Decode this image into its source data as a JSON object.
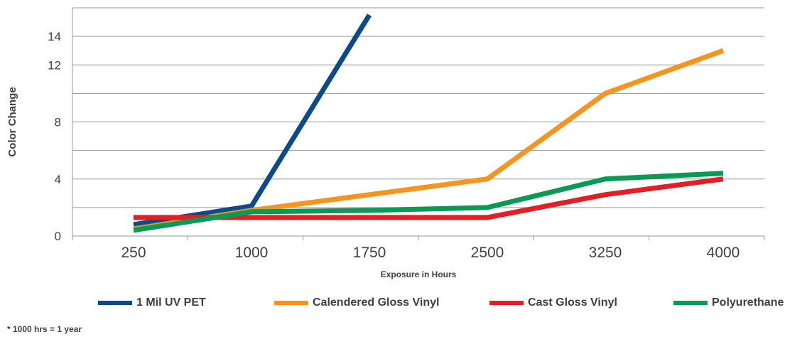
{
  "chart_data": {
    "type": "line",
    "title": "",
    "xlabel": "Exposure in Hours",
    "ylabel": "Color Change",
    "categories": [
      "250",
      "1000",
      "1750",
      "2500",
      "3250",
      "4000"
    ],
    "y_ticks": [
      "0",
      "4",
      "8",
      "12",
      "14"
    ],
    "ylim": [
      0,
      16
    ],
    "grid": true,
    "legend_position": "bottom",
    "series": [
      {
        "name": "1 Mil UV PET",
        "color": "#0b4a8b",
        "points": [
          [
            250,
            0.8
          ],
          [
            1000,
            2.1
          ],
          [
            1750,
            15.5
          ]
        ]
      },
      {
        "name": "Calendered Gloss Vinyl",
        "color": "#f7941d",
        "points": [
          [
            250,
            0.5
          ],
          [
            1000,
            1.8
          ],
          [
            1750,
            2.9
          ],
          [
            2500,
            4.0
          ],
          [
            3250,
            10.0
          ],
          [
            4000,
            13.0
          ]
        ]
      },
      {
        "name": "Cast Gloss Vinyl",
        "color": "#e31e24",
        "points": [
          [
            250,
            1.3
          ],
          [
            1000,
            1.3
          ],
          [
            1750,
            1.3
          ],
          [
            2500,
            1.3
          ],
          [
            3250,
            2.9
          ],
          [
            4000,
            4.0
          ]
        ]
      },
      {
        "name": "Polyurethane",
        "color": "#0a9a56",
        "points": [
          [
            250,
            0.4
          ],
          [
            1000,
            1.7
          ],
          [
            1750,
            1.8
          ],
          [
            2500,
            2.0
          ],
          [
            3250,
            4.0
          ],
          [
            4000,
            4.4
          ]
        ]
      }
    ],
    "footnote": "* 1000 hrs = 1 year"
  }
}
